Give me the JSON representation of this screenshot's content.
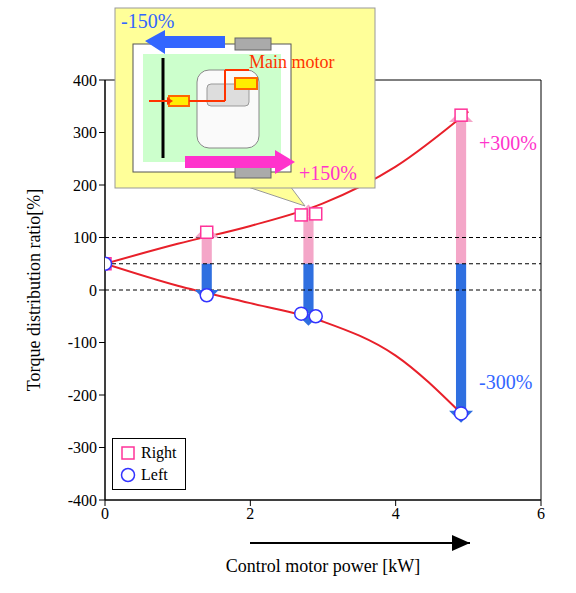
{
  "chart_data": {
    "type": "scatter",
    "x_label": "Control motor power [kW]",
    "y_label": "Torque distribution ratio[%]",
    "xlim": [
      0,
      6
    ],
    "xticks": [
      0,
      2,
      4,
      6
    ],
    "ylim": [
      -400,
      400
    ],
    "yticks": [
      -400,
      -300,
      -200,
      -100,
      0,
      100,
      200,
      300,
      400
    ],
    "grid": false,
    "legend": "lower left",
    "reference_lines": [
      0,
      50,
      100
    ],
    "series": [
      {
        "name": "Right",
        "color": "#ff3399",
        "marker": "square",
        "x": [
          0,
          1.4,
          2.7,
          2.9,
          4.9
        ],
        "values": [
          50,
          110,
          143,
          145,
          333
        ]
      },
      {
        "name": "Left",
        "color": "#3333ff",
        "marker": "circle",
        "x": [
          0,
          1.4,
          2.7,
          2.9,
          4.9
        ],
        "values": [
          50,
          -10,
          -45,
          -50,
          -235
        ]
      }
    ],
    "curves": [
      {
        "color": "#e8202a",
        "x": [
          0,
          1,
          2,
          3,
          4,
          5
        ],
        "values": [
          50,
          88,
          122,
          165,
          235,
          340
        ]
      },
      {
        "color": "#e8202a",
        "x": [
          0,
          1,
          2,
          3,
          4,
          4.9
        ],
        "values": [
          50,
          8,
          -25,
          -60,
          -125,
          -235
        ]
      }
    ],
    "arrows": {
      "x": [
        1.4,
        2.8,
        4.9
      ],
      "base": 50,
      "right": [
        100,
        140,
        320
      ],
      "left": [
        0,
        -45,
        -230
      ],
      "right_color": "#f4a6c8",
      "left_color": "#2f6fe0"
    },
    "annotations": [
      {
        "text": "+300%",
        "color": "#ff33cc"
      },
      {
        "text": "-300%",
        "color": "#3366ff"
      }
    ],
    "inset": {
      "left_text": "-150%",
      "left_color": "#3366ff",
      "right_text": "+150%",
      "right_color": "#ff33cc",
      "motor_label": "Main motor",
      "motor_color": "#ff3300"
    }
  }
}
